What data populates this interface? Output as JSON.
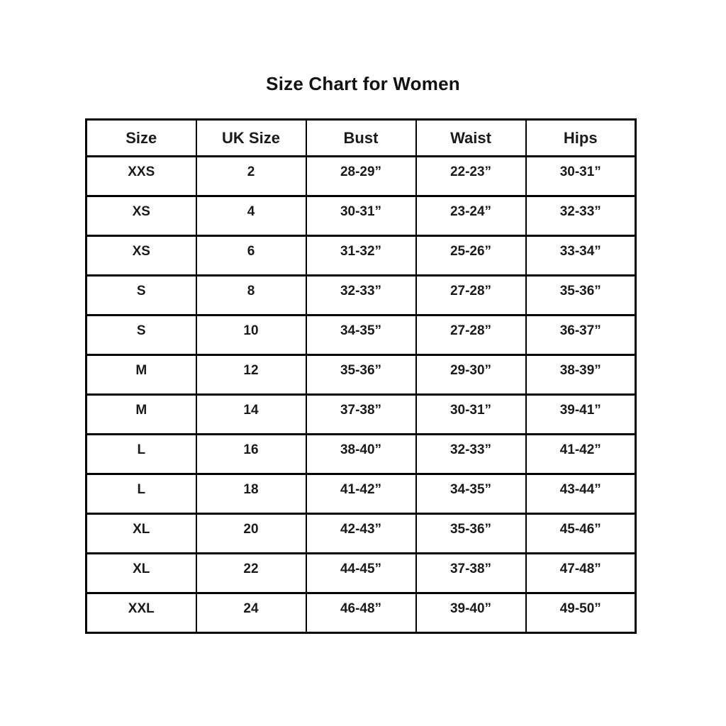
{
  "page": {
    "background_color": "#ffffff",
    "border_color": "#000000",
    "text_color": "#1a1a1a"
  },
  "title": "Size Chart for Women",
  "chart_data": {
    "type": "table",
    "title": "Size Chart for Women",
    "columns": [
      "Size",
      "UK Size",
      "Bust",
      "Waist",
      "Hips"
    ],
    "rows": [
      [
        "XXS",
        "2",
        "28-29”",
        "22-23”",
        "30-31”"
      ],
      [
        "XS",
        "4",
        "30-31”",
        "23-24”",
        "32-33”"
      ],
      [
        "XS",
        "6",
        "31-32”",
        "25-26”",
        "33-34”"
      ],
      [
        "S",
        "8",
        "32-33”",
        "27-28”",
        "35-36”"
      ],
      [
        "S",
        "10",
        "34-35”",
        "27-28”",
        "36-37”"
      ],
      [
        "M",
        "12",
        "35-36”",
        "29-30”",
        "38-39”"
      ],
      [
        "M",
        "14",
        "37-38”",
        "30-31”",
        "39-41”"
      ],
      [
        "L",
        "16",
        "38-40”",
        "32-33”",
        "41-42”"
      ],
      [
        "L",
        "18",
        "41-42”",
        "34-35”",
        "43-44”"
      ],
      [
        "XL",
        "20",
        "42-43”",
        "35-36”",
        "45-46”"
      ],
      [
        "XL",
        "22",
        "44-45”",
        "37-38”",
        "47-48”"
      ],
      [
        "XXL",
        "24",
        "46-48”",
        "39-40”",
        "49-50”"
      ]
    ],
    "grid": true,
    "legend": false
  }
}
